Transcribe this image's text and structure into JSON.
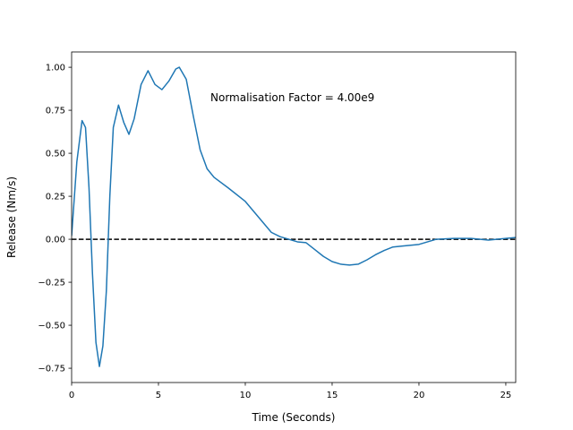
{
  "chart_data": {
    "type": "line",
    "xlabel": "Time (Seconds)",
    "ylabel": "Release (Nm/s)",
    "annotation": "Normalisation Factor = 4.00e9",
    "color": "#1f77b4",
    "reference_line": 0,
    "xlim": [
      0,
      25.57
    ],
    "ylim": [
      -0.833,
      1.089
    ],
    "xticks": [
      0,
      5,
      10,
      15,
      20,
      25
    ],
    "yticks": [
      {
        "value": -0.75,
        "label": "−0.75"
      },
      {
        "value": -0.5,
        "label": "−0.50"
      },
      {
        "value": -0.25,
        "label": "−0.25"
      },
      {
        "value": 0,
        "label": "0.00"
      },
      {
        "value": 0.25,
        "label": "0.25"
      },
      {
        "value": 0.5,
        "label": "0.50"
      },
      {
        "value": 0.75,
        "label": "0.75"
      },
      {
        "value": 1,
        "label": "1.00"
      }
    ],
    "x": [
      0,
      0.3,
      0.6,
      0.8,
      1.0,
      1.2,
      1.4,
      1.6,
      1.8,
      2.0,
      2.2,
      2.4,
      2.7,
      3.0,
      3.3,
      3.6,
      4.0,
      4.4,
      4.8,
      5.2,
      5.6,
      6.0,
      6.2,
      6.6,
      7.0,
      7.4,
      7.8,
      8.2,
      9,
      10,
      10.5,
      11,
      11.5,
      12,
      12.5,
      13,
      13.5,
      14,
      14.5,
      15,
      15.5,
      16,
      16.5,
      17,
      17.5,
      18,
      18.5,
      19,
      20,
      20.5,
      21,
      22,
      23,
      24,
      25,
      25.57
    ],
    "values": [
      0.02,
      0.45,
      0.69,
      0.65,
      0.3,
      -0.2,
      -0.6,
      -0.74,
      -0.62,
      -0.3,
      0.25,
      0.65,
      0.78,
      0.68,
      0.61,
      0.7,
      0.9,
      0.98,
      0.9,
      0.87,
      0.92,
      0.99,
      1.0,
      0.93,
      0.72,
      0.52,
      0.41,
      0.36,
      0.3,
      0.22,
      0.16,
      0.1,
      0.04,
      0.015,
      0.0,
      -0.015,
      -0.02,
      -0.06,
      -0.1,
      -0.13,
      -0.145,
      -0.15,
      -0.145,
      -0.12,
      -0.09,
      -0.065,
      -0.045,
      -0.04,
      -0.03,
      -0.015,
      0.0,
      0.005,
      0.005,
      -0.005,
      0.005,
      0.01
    ]
  }
}
